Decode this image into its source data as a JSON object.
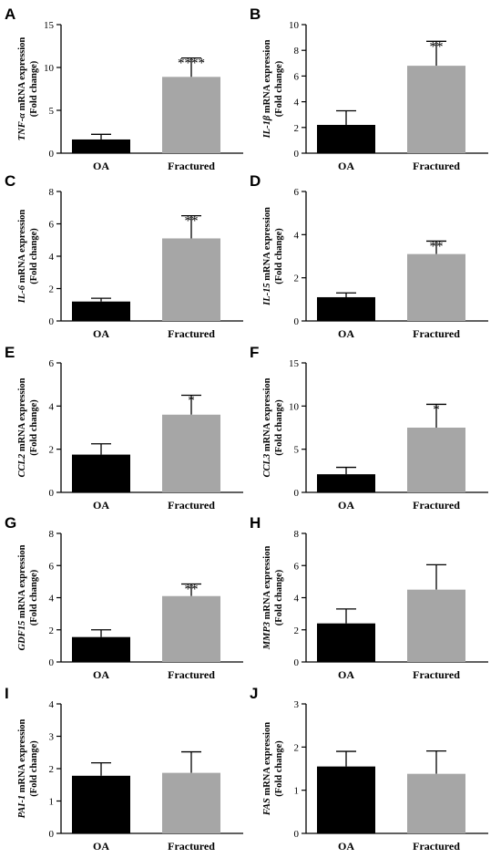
{
  "chart_data": [
    {
      "type": "bar",
      "letter": "A",
      "gene": "TNF-α",
      "ylabel_suffix": " mRNA expression",
      "ylabel_sub": "(Fold change)",
      "categories": [
        "OA",
        "Fractured"
      ],
      "values": [
        1.6,
        8.9
      ],
      "errors": [
        0.6,
        2.2
      ],
      "significance": [
        "",
        "****"
      ],
      "ylim": [
        0,
        15
      ],
      "yticks": [
        0,
        5,
        10,
        15
      ],
      "colors": [
        "#000000",
        "#a6a6a6"
      ]
    },
    {
      "type": "bar",
      "letter": "B",
      "gene": "IL-1β",
      "ylabel_suffix": " mRNA expression",
      "ylabel_sub": "(Fold change)",
      "categories": [
        "OA",
        "Fractured"
      ],
      "values": [
        2.2,
        6.8
      ],
      "errors": [
        1.1,
        1.9
      ],
      "significance": [
        "",
        "**"
      ],
      "ylim": [
        0,
        10
      ],
      "yticks": [
        0,
        2,
        4,
        6,
        8,
        10
      ],
      "colors": [
        "#000000",
        "#a6a6a6"
      ]
    },
    {
      "type": "bar",
      "letter": "C",
      "gene": "IL-6",
      "ylabel_suffix": " mRNA expression",
      "ylabel_sub": "(Fold change)",
      "categories": [
        "OA",
        "Fractured"
      ],
      "values": [
        1.2,
        5.1
      ],
      "errors": [
        0.2,
        1.4
      ],
      "significance": [
        "",
        "**"
      ],
      "ylim": [
        0,
        8
      ],
      "yticks": [
        0,
        2,
        4,
        6,
        8
      ],
      "colors": [
        "#000000",
        "#a6a6a6"
      ]
    },
    {
      "type": "bar",
      "letter": "D",
      "gene": "IL-15",
      "ylabel_suffix": " mRNA expression",
      "ylabel_sub": "(Fold change)",
      "categories": [
        "OA",
        "Fractured"
      ],
      "values": [
        1.1,
        3.1
      ],
      "errors": [
        0.2,
        0.6
      ],
      "significance": [
        "",
        "**"
      ],
      "ylim": [
        0,
        6
      ],
      "yticks": [
        0,
        2,
        4,
        6
      ],
      "colors": [
        "#000000",
        "#a6a6a6"
      ]
    },
    {
      "type": "bar",
      "letter": "E",
      "gene": "CCL2",
      "ylabel_suffix": " mRNA expression",
      "ylabel_sub": "(Fold change)",
      "categories": [
        "OA",
        "Fractured"
      ],
      "values": [
        1.75,
        3.6
      ],
      "errors": [
        0.5,
        0.9
      ],
      "significance": [
        "",
        "*"
      ],
      "ylim": [
        0,
        6
      ],
      "yticks": [
        0,
        2,
        4,
        6
      ],
      "colors": [
        "#000000",
        "#a6a6a6"
      ]
    },
    {
      "type": "bar",
      "letter": "F",
      "gene": "CCL3",
      "ylabel_suffix": " mRNA expression",
      "ylabel_sub": "(Fold change)",
      "categories": [
        "OA",
        "Fractured"
      ],
      "values": [
        2.1,
        7.5
      ],
      "errors": [
        0.8,
        2.7
      ],
      "significance": [
        "",
        "*"
      ],
      "ylim": [
        0,
        15
      ],
      "yticks": [
        0,
        5,
        10,
        15
      ],
      "colors": [
        "#000000",
        "#a6a6a6"
      ]
    },
    {
      "type": "bar",
      "letter": "G",
      "gene": "GDF15",
      "ylabel_suffix": " mRNA expression",
      "ylabel_sub": "(Fold change)",
      "categories": [
        "OA",
        "Fractured"
      ],
      "values": [
        1.55,
        4.1
      ],
      "errors": [
        0.45,
        0.75
      ],
      "significance": [
        "",
        "**"
      ],
      "ylim": [
        0,
        8
      ],
      "yticks": [
        0,
        2,
        4,
        6,
        8
      ],
      "colors": [
        "#000000",
        "#a6a6a6"
      ]
    },
    {
      "type": "bar",
      "letter": "H",
      "gene": "MMP3",
      "ylabel_suffix": " mRNA expression",
      "ylabel_sub": "(Fold change)",
      "categories": [
        "OA",
        "Fractured"
      ],
      "values": [
        2.4,
        4.5
      ],
      "errors": [
        0.9,
        1.55
      ],
      "significance": [
        "",
        ""
      ],
      "ylim": [
        0,
        8
      ],
      "yticks": [
        0,
        2,
        4,
        6,
        8
      ],
      "colors": [
        "#000000",
        "#a6a6a6"
      ]
    },
    {
      "type": "bar",
      "letter": "I",
      "gene": "PAI-1",
      "ylabel_suffix": " mRNA expression",
      "ylabel_sub": "(Fold change)",
      "categories": [
        "OA",
        "Fractured"
      ],
      "values": [
        1.78,
        1.87
      ],
      "errors": [
        0.4,
        0.65
      ],
      "significance": [
        "",
        ""
      ],
      "ylim": [
        0,
        4
      ],
      "yticks": [
        0,
        1,
        2,
        3,
        4
      ],
      "colors": [
        "#000000",
        "#a6a6a6"
      ]
    },
    {
      "type": "bar",
      "letter": "J",
      "gene": "FAS",
      "ylabel_suffix": " mRNA expression",
      "ylabel_sub": "(Fold change)",
      "categories": [
        "OA",
        "Fractured"
      ],
      "values": [
        1.55,
        1.38
      ],
      "errors": [
        0.35,
        0.53
      ],
      "significance": [
        "",
        ""
      ],
      "ylim": [
        0,
        3
      ],
      "yticks": [
        0,
        1,
        2,
        3
      ],
      "colors": [
        "#000000",
        "#a6a6a6"
      ]
    }
  ]
}
